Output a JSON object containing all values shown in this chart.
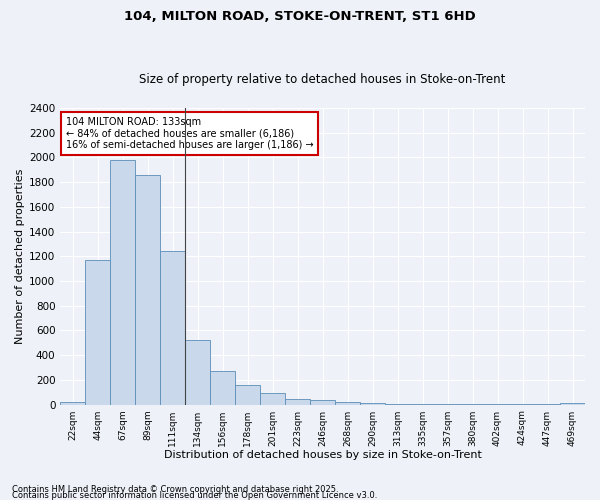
{
  "title1": "104, MILTON ROAD, STOKE-ON-TRENT, ST1 6HD",
  "title2": "Size of property relative to detached houses in Stoke-on-Trent",
  "xlabel": "Distribution of detached houses by size in Stoke-on-Trent",
  "ylabel": "Number of detached properties",
  "categories": [
    "22sqm",
    "44sqm",
    "67sqm",
    "89sqm",
    "111sqm",
    "134sqm",
    "156sqm",
    "178sqm",
    "201sqm",
    "223sqm",
    "246sqm",
    "268sqm",
    "290sqm",
    "313sqm",
    "335sqm",
    "357sqm",
    "380sqm",
    "402sqm",
    "424sqm",
    "447sqm",
    "469sqm"
  ],
  "values": [
    25,
    1170,
    1980,
    1860,
    1245,
    520,
    275,
    155,
    95,
    45,
    40,
    18,
    10,
    5,
    3,
    2,
    2,
    1,
    1,
    1,
    15
  ],
  "bar_color": "#c9d9eb",
  "bar_edge_color": "#5b8db8",
  "bg_color": "#eef2f8",
  "grid_color": "#ffffff",
  "annotation_line1": "104 MILTON ROAD: 133sqm",
  "annotation_line2": "← 84% of detached houses are smaller (6,186)",
  "annotation_line3": "16% of semi-detached houses are larger (1,186) →",
  "annotation_box_color": "#ffffff",
  "annotation_box_edge": "#cc0000",
  "vline_x_index": 4.5,
  "ylim": [
    0,
    2400
  ],
  "yticks": [
    0,
    200,
    400,
    600,
    800,
    1000,
    1200,
    1400,
    1600,
    1800,
    2000,
    2200,
    2400
  ],
  "footer1": "Contains HM Land Registry data © Crown copyright and database right 2025.",
  "footer2": "Contains public sector information licensed under the Open Government Licence v3.0."
}
